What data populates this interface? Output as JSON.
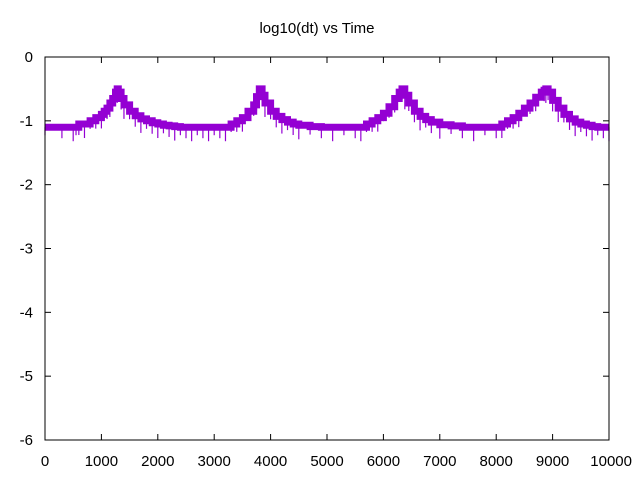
{
  "chart_data": {
    "type": "line",
    "title": "log10(dt) vs Time",
    "xlabel": "",
    "ylabel": "",
    "xlim": [
      0,
      10000
    ],
    "ylim": [
      -6,
      0
    ],
    "xticks": [
      0,
      1000,
      2000,
      3000,
      4000,
      5000,
      6000,
      7000,
      8000,
      9000,
      10000
    ],
    "yticks": [
      0,
      -1,
      -2,
      -3,
      -4,
      -5,
      -6
    ],
    "grid": false,
    "legend": "none",
    "series": [
      {
        "color": "#9400d3",
        "x": [
          0,
          300,
          500,
          550,
          600,
          700,
          800,
          900,
          1000,
          1050,
          1100,
          1150,
          1200,
          1250,
          1280,
          1300,
          1350,
          1400,
          1500,
          1600,
          1700,
          1800,
          1900,
          2000,
          2100,
          2200,
          2300,
          2400,
          2500,
          2600,
          2700,
          2800,
          2900,
          3000,
          3100,
          3200,
          3300,
          3400,
          3500,
          3600,
          3700,
          3750,
          3800,
          3850,
          3900,
          4000,
          4100,
          4200,
          4300,
          4400,
          4500,
          4700,
          4900,
          5100,
          5300,
          5500,
          5600,
          5700,
          5800,
          5900,
          6000,
          6100,
          6200,
          6280,
          6330,
          6380,
          6450,
          6550,
          6650,
          6750,
          6850,
          7000,
          7200,
          7400,
          7600,
          7800,
          8000,
          8100,
          8200,
          8300,
          8400,
          8500,
          8600,
          8700,
          8800,
          8850,
          8880,
          8920,
          9000,
          9100,
          9200,
          9300,
          9400,
          9500,
          9600,
          9700,
          9800,
          9900,
          10000
        ],
        "y": [
          -1.1,
          -1.1,
          -1.1,
          -1.1,
          -1.05,
          -1.05,
          -1.0,
          -0.95,
          -0.9,
          -0.85,
          -0.8,
          -0.72,
          -0.65,
          -0.55,
          -0.5,
          -0.55,
          -0.65,
          -0.75,
          -0.85,
          -0.92,
          -0.97,
          -1.0,
          -1.03,
          -1.05,
          -1.07,
          -1.08,
          -1.09,
          -1.1,
          -1.1,
          -1.1,
          -1.1,
          -1.1,
          -1.1,
          -1.1,
          -1.1,
          -1.1,
          -1.05,
          -1.0,
          -0.95,
          -0.85,
          -0.75,
          -0.62,
          -0.5,
          -0.6,
          -0.72,
          -0.85,
          -0.93,
          -0.98,
          -1.02,
          -1.05,
          -1.07,
          -1.09,
          -1.1,
          -1.1,
          -1.1,
          -1.1,
          -1.1,
          -1.05,
          -1.0,
          -0.95,
          -0.88,
          -0.78,
          -0.65,
          -0.55,
          -0.5,
          -0.6,
          -0.72,
          -0.85,
          -0.93,
          -0.98,
          -1.02,
          -1.06,
          -1.08,
          -1.1,
          -1.1,
          -1.1,
          -1.1,
          -1.05,
          -1.0,
          -0.95,
          -0.88,
          -0.8,
          -0.72,
          -0.63,
          -0.55,
          -0.52,
          -0.5,
          -0.55,
          -0.68,
          -0.8,
          -0.9,
          -0.97,
          -1.02,
          -1.05,
          -1.07,
          -1.09,
          -1.1,
          -1.1,
          -1.1
        ]
      }
    ]
  }
}
